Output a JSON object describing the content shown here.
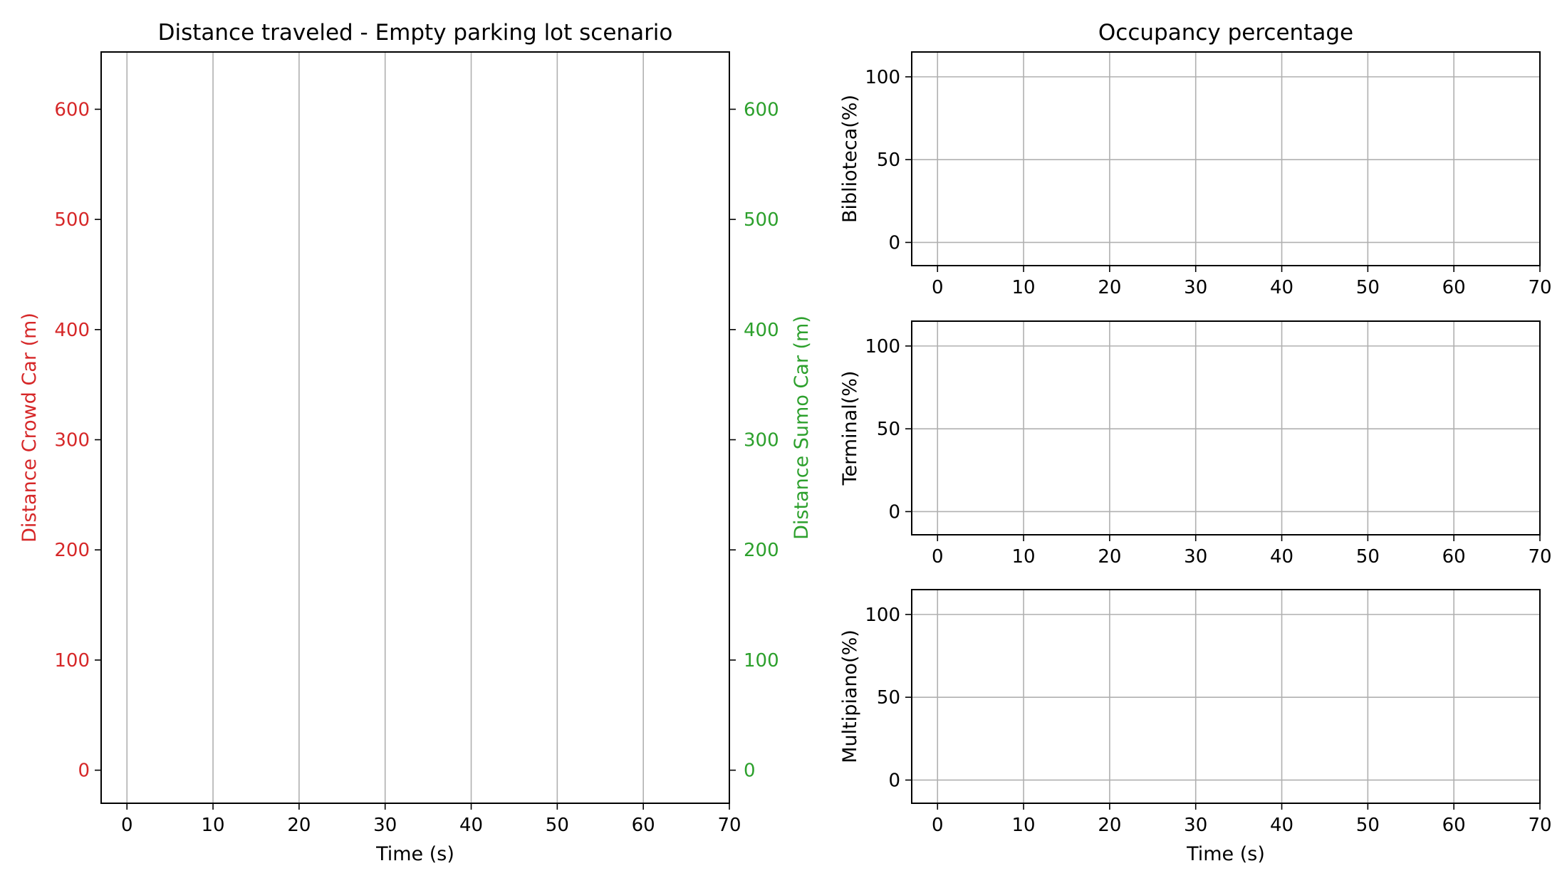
{
  "colors": {
    "crowd": "#d62728",
    "sumo": "#2ca02c",
    "grid": "#b0b0b0",
    "axis": "#000000",
    "text": "#000000"
  },
  "chart_data": [
    {
      "type": "line",
      "title": "Distance traveled - Empty parking lot scenario",
      "xlabel": "Time (s)",
      "ylabel": "Distance Crowd Car (m)",
      "ylabel_right": "Distance Sumo Car (m)",
      "xlim": [
        -3,
        70
      ],
      "ylim": [
        -30,
        652
      ],
      "ylim_right": [
        -30,
        652
      ],
      "xticks": [
        0,
        10,
        20,
        30,
        40,
        50,
        60,
        70
      ],
      "yticks": [
        0,
        100,
        200,
        300,
        400,
        500,
        600
      ],
      "yticks_right": [
        0,
        100,
        200,
        300,
        400,
        500,
        600
      ],
      "grid": "x",
      "series": []
    },
    {
      "type": "line",
      "title": "Occupancy percentage",
      "xlabel": "",
      "ylabel": "Biblioteca(%)",
      "xlim": [
        -3,
        70
      ],
      "ylim": [
        -14,
        115
      ],
      "xticks": [
        0,
        10,
        20,
        30,
        40,
        50,
        60,
        70
      ],
      "yticks": [
        0,
        50,
        100
      ],
      "grid": "both",
      "series": []
    },
    {
      "type": "line",
      "title": "",
      "xlabel": "",
      "ylabel": "Terminal(%)",
      "xlim": [
        -3,
        70
      ],
      "ylim": [
        -14,
        115
      ],
      "xticks": [
        0,
        10,
        20,
        30,
        40,
        50,
        60,
        70
      ],
      "yticks": [
        0,
        50,
        100
      ],
      "grid": "both",
      "series": []
    },
    {
      "type": "line",
      "title": "",
      "xlabel": "Time (s)",
      "ylabel": "Multipiano(%)",
      "xlim": [
        -3,
        70
      ],
      "ylim": [
        -14,
        115
      ],
      "xticks": [
        0,
        10,
        20,
        30,
        40,
        50,
        60,
        70
      ],
      "yticks": [
        0,
        50,
        100
      ],
      "grid": "both",
      "series": []
    }
  ]
}
